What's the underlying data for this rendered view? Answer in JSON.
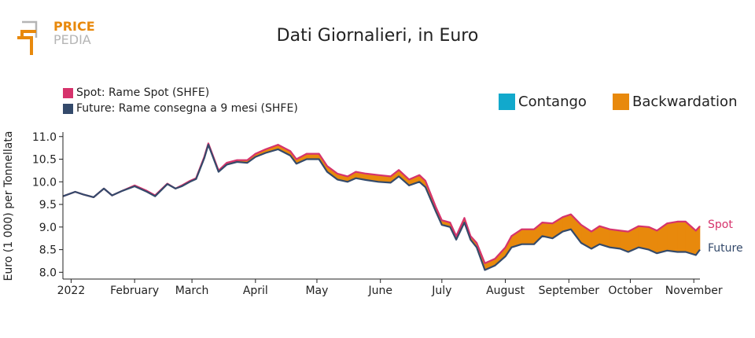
{
  "brand": {
    "line1": "PRICE",
    "line2": "PEDIA"
  },
  "chart_data": {
    "type": "area",
    "title": "Dati Giornalieri, in Euro",
    "ylabel": "Euro (1 000) per Tonnellata",
    "xlabel": "",
    "ylim": [
      7.85,
      11.1
    ],
    "xlim": [
      "2021-12-28",
      "2022-11-04"
    ],
    "yticks": [
      8.0,
      8.5,
      9.0,
      9.5,
      10.0,
      10.5,
      11.0
    ],
    "ytick_labels": [
      "8.0",
      "8.5",
      "9.0",
      "9.5",
      "10.0",
      "10.5",
      "11.0"
    ],
    "xticks": [
      "2022-01-01",
      "2022-02-01",
      "2022-03-01",
      "2022-04-01",
      "2022-05-01",
      "2022-06-01",
      "2022-07-01",
      "2022-08-01",
      "2022-09-01",
      "2022-10-01",
      "2022-11-01"
    ],
    "xtick_labels": [
      "2022",
      "February",
      "March",
      "April",
      "May",
      "June",
      "July",
      "August",
      "September",
      "October",
      "November"
    ],
    "grid": false,
    "legend": [
      {
        "label": "Spot: Rame Spot (SHFE)",
        "color": "#d6336c"
      },
      {
        "label": "Future: Rame consegna a 9 mesi (SHFE)",
        "color": "#344a6b"
      }
    ],
    "fill_legend": [
      {
        "label": "Contango",
        "color": "#12a9cc"
      },
      {
        "label": "Backwardation",
        "color": "#e8890c"
      }
    ],
    "end_labels": {
      "spot": "Spot",
      "future": "Future"
    },
    "x": [
      "2021-12-28",
      "2022-01-03",
      "2022-01-07",
      "2022-01-12",
      "2022-01-17",
      "2022-01-21",
      "2022-01-26",
      "2022-02-01",
      "2022-02-07",
      "2022-02-11",
      "2022-02-17",
      "2022-02-21",
      "2022-02-24",
      "2022-02-28",
      "2022-03-03",
      "2022-03-07",
      "2022-03-09",
      "2022-03-14",
      "2022-03-18",
      "2022-03-23",
      "2022-03-28",
      "2022-04-01",
      "2022-04-06",
      "2022-04-12",
      "2022-04-18",
      "2022-04-21",
      "2022-04-26",
      "2022-05-02",
      "2022-05-06",
      "2022-05-11",
      "2022-05-16",
      "2022-05-20",
      "2022-05-25",
      "2022-05-31",
      "2022-06-06",
      "2022-06-10",
      "2022-06-15",
      "2022-06-20",
      "2022-06-23",
      "2022-06-28",
      "2022-07-01",
      "2022-07-05",
      "2022-07-08",
      "2022-07-12",
      "2022-07-15",
      "2022-07-18",
      "2022-07-22",
      "2022-07-27",
      "2022-08-01",
      "2022-08-04",
      "2022-08-09",
      "2022-08-15",
      "2022-08-19",
      "2022-08-24",
      "2022-08-29",
      "2022-09-02",
      "2022-09-07",
      "2022-09-12",
      "2022-09-16",
      "2022-09-21",
      "2022-09-26",
      "2022-09-30",
      "2022-10-05",
      "2022-10-10",
      "2022-10-14",
      "2022-10-19",
      "2022-10-24",
      "2022-10-28",
      "2022-11-02",
      "2022-11-04"
    ],
    "series": [
      {
        "name": "Spot",
        "color": "#d6336c",
        "values": [
          9.68,
          9.78,
          9.72,
          9.66,
          9.85,
          9.7,
          9.8,
          9.92,
          9.8,
          9.7,
          9.96,
          9.85,
          9.92,
          10.02,
          10.08,
          10.55,
          10.85,
          10.25,
          10.42,
          10.48,
          10.48,
          10.62,
          10.72,
          10.82,
          10.68,
          10.5,
          10.62,
          10.62,
          10.35,
          10.18,
          10.12,
          10.22,
          10.18,
          10.15,
          10.12,
          10.26,
          10.05,
          10.15,
          10.02,
          9.45,
          9.15,
          9.1,
          8.8,
          9.2,
          8.8,
          8.65,
          8.2,
          8.3,
          8.55,
          8.8,
          8.95,
          8.95,
          9.1,
          9.08,
          9.22,
          9.28,
          9.05,
          8.9,
          9.02,
          8.95,
          8.92,
          8.9,
          9.02,
          9.0,
          8.92,
          9.08,
          9.12,
          9.12,
          8.92,
          9.02
        ]
      },
      {
        "name": "Future",
        "color": "#344a6b",
        "values": [
          9.68,
          9.78,
          9.72,
          9.66,
          9.85,
          9.7,
          9.8,
          9.9,
          9.78,
          9.68,
          9.95,
          9.85,
          9.9,
          10.0,
          10.06,
          10.52,
          10.82,
          10.22,
          10.38,
          10.44,
          10.42,
          10.55,
          10.64,
          10.72,
          10.58,
          10.4,
          10.5,
          10.5,
          10.22,
          10.05,
          10.0,
          10.08,
          10.04,
          10.0,
          9.98,
          10.12,
          9.92,
          10.0,
          9.88,
          9.35,
          9.05,
          9.0,
          8.72,
          9.1,
          8.72,
          8.55,
          8.05,
          8.15,
          8.35,
          8.55,
          8.62,
          8.62,
          8.8,
          8.75,
          8.9,
          8.95,
          8.65,
          8.52,
          8.62,
          8.55,
          8.52,
          8.45,
          8.55,
          8.5,
          8.42,
          8.48,
          8.45,
          8.45,
          8.38,
          8.5
        ]
      }
    ]
  }
}
